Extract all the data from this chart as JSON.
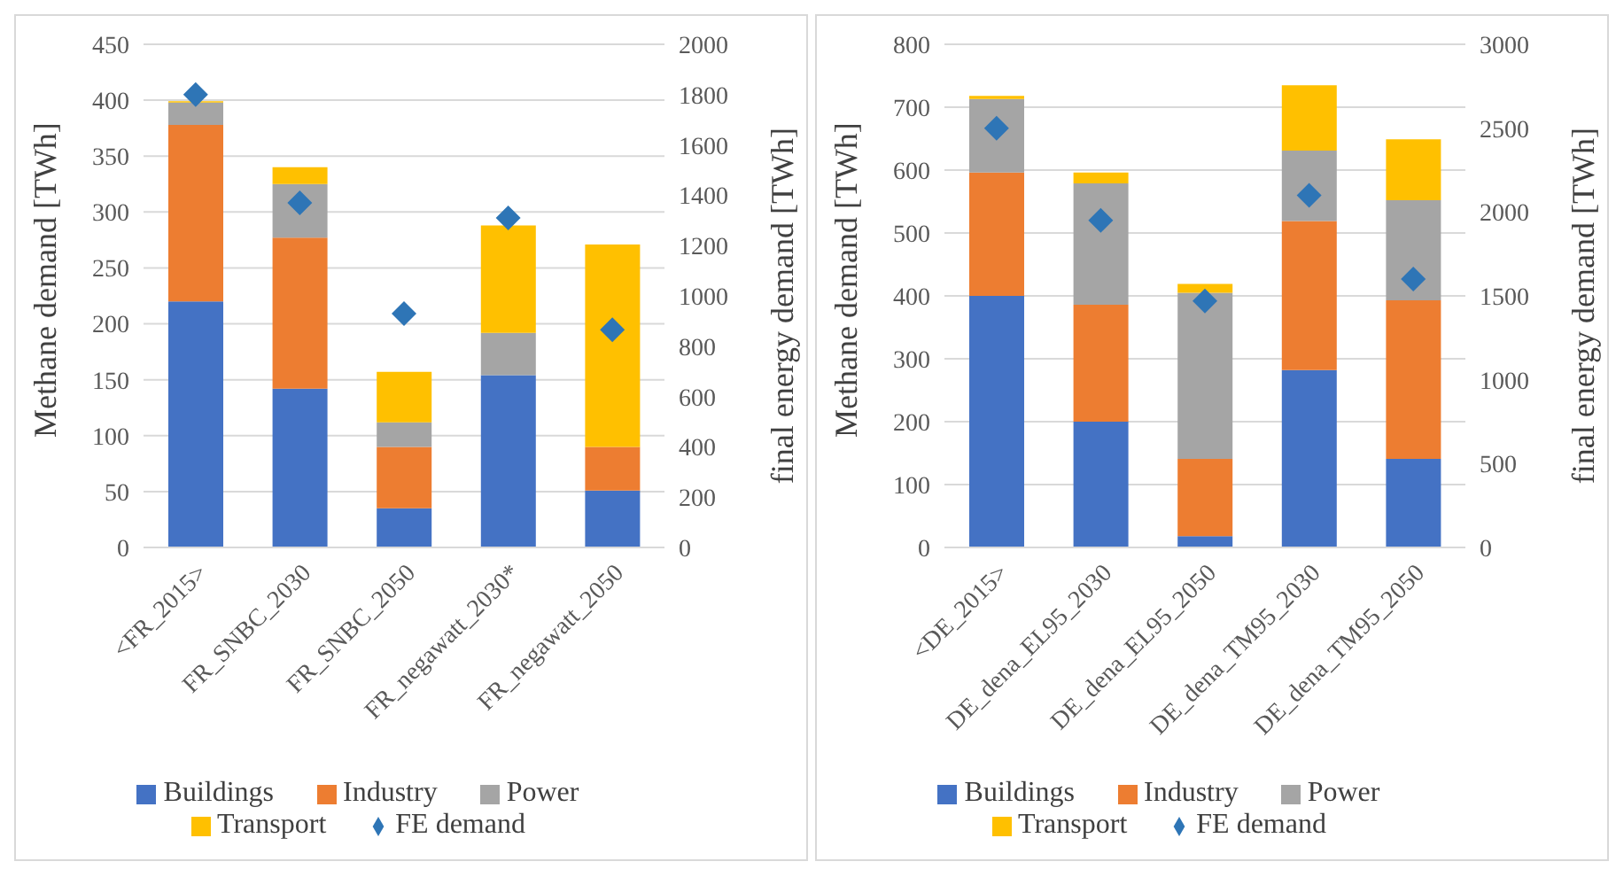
{
  "chart_data": [
    {
      "type": "bar",
      "stacked": true,
      "categories": [
        "<FR_2015>",
        "FR_SNBC_2030",
        "FR_SNBC_2050",
        "FR_negawatt_2030*",
        "FR_negawatt_2050"
      ],
      "ylabel": "Methane demand [TWh]",
      "y2label": "final energy demand [TWh]",
      "ylim": [
        0,
        450
      ],
      "yticks": [
        0,
        50,
        100,
        150,
        200,
        250,
        300,
        350,
        400,
        450
      ],
      "y2lim": [
        0,
        2000
      ],
      "y2ticks": [
        0,
        200,
        400,
        600,
        800,
        1000,
        1200,
        1400,
        1600,
        1800,
        2000
      ],
      "grid": "y",
      "legend": "bottom",
      "marker": "diamond",
      "series": [
        {
          "name": "Buildings",
          "color": "#4472c4",
          "values": [
            220,
            142,
            35,
            154,
            51
          ]
        },
        {
          "name": "Industry",
          "color": "#ed7d31",
          "values": [
            158,
            135,
            55,
            0,
            39
          ]
        },
        {
          "name": "Power",
          "color": "#a5a5a5",
          "values": [
            20,
            48,
            22,
            38,
            0
          ]
        },
        {
          "name": "Transport",
          "color": "#ffc000",
          "values": [
            1,
            15,
            45,
            96,
            181
          ]
        },
        {
          "name": "FE demand",
          "type": "scatter",
          "axis": "y2",
          "color": "#2e75b6",
          "values": [
            1800,
            1370,
            930,
            1310,
            865
          ]
        }
      ]
    },
    {
      "type": "bar",
      "stacked": true,
      "categories": [
        "<DE_2015>",
        "DE_dena_EL95_2030",
        "DE_dena_EL95_2050",
        "DE_dena_TM95_2030",
        "DE_dena_TM95_2050"
      ],
      "ylabel": "Methane demand [TWh]",
      "y2label": "final energy demand [TWh]",
      "ylim": [
        0,
        800
      ],
      "yticks": [
        0,
        100,
        200,
        300,
        400,
        500,
        600,
        700,
        800
      ],
      "y2lim": [
        0,
        3000
      ],
      "y2ticks": [
        0,
        500,
        1000,
        1500,
        2000,
        2500,
        3000
      ],
      "grid": "y",
      "legend": "bottom",
      "marker": "diamond",
      "series": [
        {
          "name": "Buildings",
          "color": "#4472c4",
          "values": [
            400,
            200,
            18,
            282,
            141
          ]
        },
        {
          "name": "Industry",
          "color": "#ed7d31",
          "values": [
            196,
            186,
            123,
            237,
            252
          ]
        },
        {
          "name": "Power",
          "color": "#a5a5a5",
          "values": [
            117,
            193,
            264,
            112,
            159
          ]
        },
        {
          "name": "Transport",
          "color": "#ffc000",
          "values": [
            5,
            17,
            14,
            104,
            97
          ]
        },
        {
          "name": "FE demand",
          "type": "scatter",
          "axis": "y2",
          "color": "#2e75b6",
          "values": [
            2500,
            1950,
            1470,
            2100,
            1600
          ]
        }
      ]
    }
  ]
}
